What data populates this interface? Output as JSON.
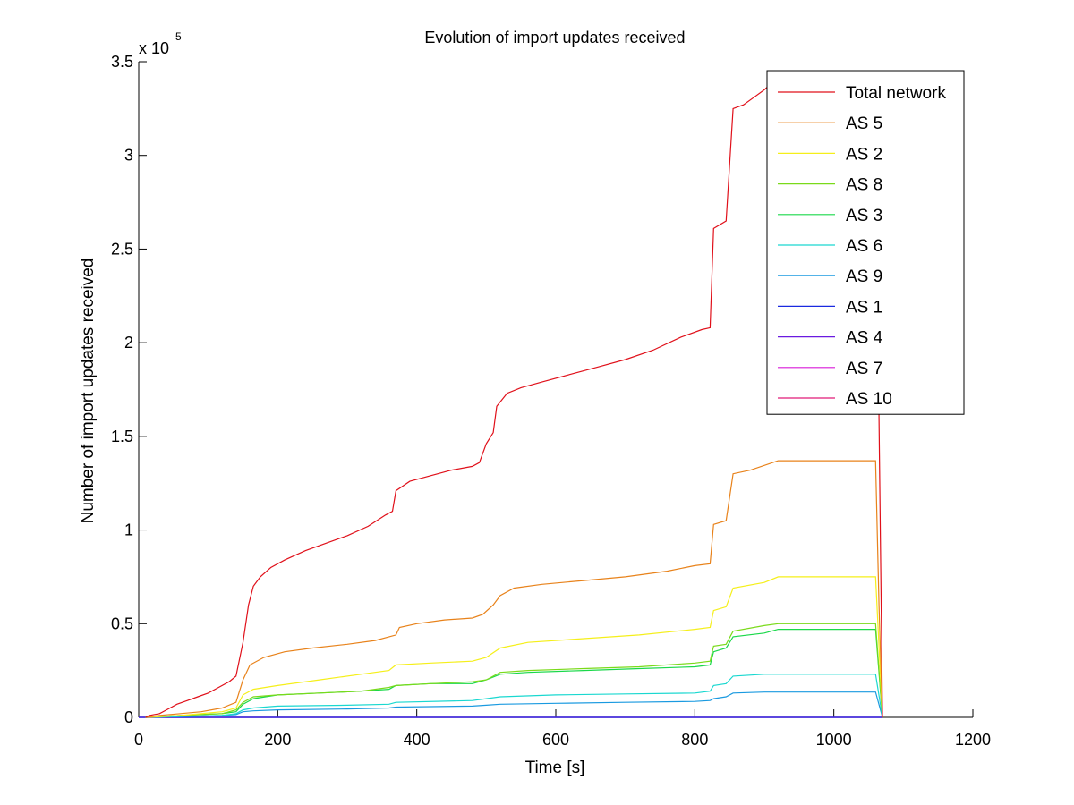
{
  "chart_data": {
    "type": "line",
    "title": "Evolution of import updates received",
    "xlabel": "Time [s]",
    "ylabel": "Number of import updates received",
    "xlim": [
      0,
      1200
    ],
    "ylim": [
      0,
      350000
    ],
    "x_ticks": [
      0,
      200,
      400,
      600,
      800,
      1000,
      1200
    ],
    "x_tick_labels": [
      "0",
      "200",
      "400",
      "600",
      "800",
      "1000",
      "1200"
    ],
    "y_ticks": [
      0,
      50000,
      100000,
      150000,
      200000,
      250000,
      300000,
      350000
    ],
    "y_tick_labels": [
      "0",
      "0.5",
      "1",
      "1.5",
      "2",
      "2.5",
      "3",
      "3.5"
    ],
    "y_multiplier_base": "x 10",
    "y_multiplier_exponent": "5",
    "grid": false,
    "legend_position": "top-right",
    "series": [
      {
        "name": "Total network",
        "color": "#e0101a",
        "points": [
          [
            10,
            0
          ],
          [
            15,
            1000
          ],
          [
            30,
            2000
          ],
          [
            40,
            4000
          ],
          [
            55,
            7000
          ],
          [
            70,
            9000
          ],
          [
            85,
            11000
          ],
          [
            100,
            13000
          ],
          [
            115,
            16000
          ],
          [
            130,
            19000
          ],
          [
            140,
            22000
          ],
          [
            150,
            40000
          ],
          [
            158,
            60000
          ],
          [
            165,
            70000
          ],
          [
            175,
            75000
          ],
          [
            190,
            80000
          ],
          [
            210,
            84000
          ],
          [
            240,
            89000
          ],
          [
            270,
            93000
          ],
          [
            300,
            97000
          ],
          [
            330,
            102000
          ],
          [
            355,
            108000
          ],
          [
            365,
            110000
          ],
          [
            370,
            121000
          ],
          [
            390,
            126000
          ],
          [
            420,
            129000
          ],
          [
            450,
            132000
          ],
          [
            480,
            134000
          ],
          [
            490,
            136000
          ],
          [
            500,
            146000
          ],
          [
            510,
            152000
          ],
          [
            515,
            166000
          ],
          [
            530,
            173000
          ],
          [
            550,
            176000
          ],
          [
            580,
            179000
          ],
          [
            620,
            183000
          ],
          [
            660,
            187000
          ],
          [
            700,
            191000
          ],
          [
            740,
            196000
          ],
          [
            780,
            203000
          ],
          [
            810,
            207000
          ],
          [
            822,
            208000
          ],
          [
            827,
            261000
          ],
          [
            845,
            265000
          ],
          [
            855,
            325000
          ],
          [
            870,
            327000
          ],
          [
            885,
            331000
          ],
          [
            900,
            335000
          ],
          [
            920,
            342000
          ],
          [
            940,
            345000
          ],
          [
            1060,
            345000
          ],
          [
            1065,
            160000
          ],
          [
            1070,
            0
          ]
        ]
      },
      {
        "name": "AS 5",
        "color": "#e8821a",
        "points": [
          [
            10,
            0
          ],
          [
            30,
            1000
          ],
          [
            60,
            2000
          ],
          [
            90,
            3000
          ],
          [
            120,
            5000
          ],
          [
            140,
            8000
          ],
          [
            150,
            20000
          ],
          [
            160,
            28000
          ],
          [
            180,
            32000
          ],
          [
            210,
            35000
          ],
          [
            250,
            37000
          ],
          [
            300,
            39000
          ],
          [
            340,
            41000
          ],
          [
            370,
            44000
          ],
          [
            375,
            48000
          ],
          [
            400,
            50000
          ],
          [
            440,
            52000
          ],
          [
            480,
            53000
          ],
          [
            495,
            55000
          ],
          [
            510,
            60000
          ],
          [
            520,
            65000
          ],
          [
            540,
            69000
          ],
          [
            580,
            71000
          ],
          [
            640,
            73000
          ],
          [
            700,
            75000
          ],
          [
            760,
            78000
          ],
          [
            800,
            81000
          ],
          [
            822,
            82000
          ],
          [
            827,
            103000
          ],
          [
            845,
            105000
          ],
          [
            855,
            130000
          ],
          [
            880,
            132000
          ],
          [
            920,
            137000
          ],
          [
            1060,
            137000
          ],
          [
            1065,
            60000
          ],
          [
            1070,
            0
          ]
        ]
      },
      {
        "name": "AS 2",
        "color": "#f5ef1a",
        "points": [
          [
            10,
            0
          ],
          [
            60,
            1000
          ],
          [
            120,
            3000
          ],
          [
            140,
            5000
          ],
          [
            150,
            12000
          ],
          [
            165,
            15000
          ],
          [
            200,
            17000
          ],
          [
            260,
            20000
          ],
          [
            320,
            23000
          ],
          [
            360,
            25000
          ],
          [
            370,
            28000
          ],
          [
            420,
            29000
          ],
          [
            480,
            30000
          ],
          [
            500,
            32000
          ],
          [
            520,
            37000
          ],
          [
            560,
            40000
          ],
          [
            640,
            42000
          ],
          [
            720,
            44000
          ],
          [
            800,
            47000
          ],
          [
            822,
            48000
          ],
          [
            827,
            57000
          ],
          [
            845,
            59000
          ],
          [
            855,
            69000
          ],
          [
            900,
            72000
          ],
          [
            920,
            75000
          ],
          [
            1060,
            75000
          ],
          [
            1070,
            0
          ]
        ]
      },
      {
        "name": "AS 8",
        "color": "#7ada1a",
        "points": [
          [
            10,
            0
          ],
          [
            60,
            1000
          ],
          [
            120,
            2000
          ],
          [
            140,
            4000
          ],
          [
            150,
            8000
          ],
          [
            165,
            11000
          ],
          [
            200,
            12000
          ],
          [
            260,
            13000
          ],
          [
            320,
            14000
          ],
          [
            360,
            16000
          ],
          [
            370,
            17000
          ],
          [
            420,
            18000
          ],
          [
            480,
            19000
          ],
          [
            500,
            20000
          ],
          [
            520,
            24000
          ],
          [
            560,
            25000
          ],
          [
            640,
            26000
          ],
          [
            720,
            27000
          ],
          [
            800,
            29000
          ],
          [
            822,
            30000
          ],
          [
            827,
            38000
          ],
          [
            845,
            39000
          ],
          [
            855,
            46000
          ],
          [
            900,
            49000
          ],
          [
            920,
            50000
          ],
          [
            1060,
            50000
          ],
          [
            1070,
            0
          ]
        ]
      },
      {
        "name": "AS 3",
        "color": "#1ad84a",
        "points": [
          [
            10,
            0
          ],
          [
            60,
            1000
          ],
          [
            120,
            2000
          ],
          [
            140,
            3000
          ],
          [
            150,
            7000
          ],
          [
            165,
            10000
          ],
          [
            200,
            12000
          ],
          [
            260,
            13000
          ],
          [
            320,
            14000
          ],
          [
            360,
            15000
          ],
          [
            370,
            17000
          ],
          [
            420,
            18000
          ],
          [
            480,
            18000
          ],
          [
            500,
            20000
          ],
          [
            520,
            23000
          ],
          [
            560,
            24000
          ],
          [
            640,
            25000
          ],
          [
            720,
            26000
          ],
          [
            800,
            27000
          ],
          [
            822,
            28000
          ],
          [
            827,
            35000
          ],
          [
            845,
            37000
          ],
          [
            855,
            43000
          ],
          [
            900,
            45000
          ],
          [
            920,
            47000
          ],
          [
            1060,
            47000
          ],
          [
            1070,
            0
          ]
        ]
      },
      {
        "name": "AS 6",
        "color": "#1ad8d0",
        "points": [
          [
            10,
            0
          ],
          [
            60,
            500
          ],
          [
            120,
            1000
          ],
          [
            140,
            2000
          ],
          [
            150,
            4000
          ],
          [
            165,
            5000
          ],
          [
            200,
            6000
          ],
          [
            300,
            6500
          ],
          [
            360,
            7000
          ],
          [
            370,
            8000
          ],
          [
            480,
            9000
          ],
          [
            500,
            10000
          ],
          [
            520,
            11000
          ],
          [
            600,
            12000
          ],
          [
            700,
            12500
          ],
          [
            800,
            13000
          ],
          [
            822,
            14000
          ],
          [
            827,
            17000
          ],
          [
            845,
            18000
          ],
          [
            855,
            22000
          ],
          [
            900,
            23000
          ],
          [
            1060,
            23000
          ],
          [
            1070,
            0
          ]
        ]
      },
      {
        "name": "AS 9",
        "color": "#1a9ae0",
        "points": [
          [
            10,
            0
          ],
          [
            60,
            500
          ],
          [
            120,
            1000
          ],
          [
            140,
            1500
          ],
          [
            150,
            3000
          ],
          [
            165,
            3500
          ],
          [
            200,
            4000
          ],
          [
            300,
            4500
          ],
          [
            360,
            5000
          ],
          [
            370,
            5500
          ],
          [
            480,
            6000
          ],
          [
            500,
            6500
          ],
          [
            520,
            7000
          ],
          [
            600,
            7500
          ],
          [
            700,
            8000
          ],
          [
            800,
            8500
          ],
          [
            822,
            9000
          ],
          [
            827,
            10000
          ],
          [
            845,
            11000
          ],
          [
            855,
            13000
          ],
          [
            900,
            13500
          ],
          [
            1060,
            13500
          ],
          [
            1070,
            0
          ]
        ]
      },
      {
        "name": "AS 1",
        "color": "#1a2ae0",
        "points": [
          [
            0,
            0
          ],
          [
            1070,
            0
          ]
        ]
      },
      {
        "name": "AS 4",
        "color": "#6a1ae0",
        "points": [
          [
            0,
            0
          ],
          [
            1070,
            0
          ]
        ]
      },
      {
        "name": "AS 7",
        "color": "#d81ad8",
        "points": [
          [
            0,
            0
          ],
          [
            1070,
            0
          ]
        ]
      },
      {
        "name": "AS 10",
        "color": "#e01a78",
        "points": [
          [
            0,
            0
          ],
          [
            1070,
            0
          ]
        ]
      }
    ]
  }
}
